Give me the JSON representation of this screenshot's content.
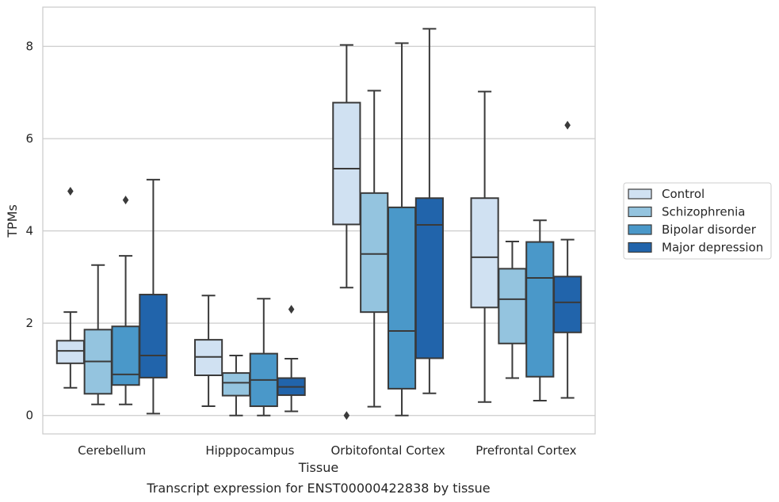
{
  "chart_data": {
    "type": "box",
    "title": "",
    "caption": "Transcript expression for ENST00000422838 by tissue",
    "xlabel": "Tissue",
    "ylabel": "TPMs",
    "ylim": [
      -0.4,
      8.85
    ],
    "yticks": [
      0,
      2,
      4,
      6,
      8
    ],
    "grid": "horizontal",
    "legend_position": "right",
    "categories": [
      "Cerebellum",
      "Hipppocampus",
      "Orbitofontal Cortex",
      "Prefrontal Cortex"
    ],
    "series": [
      {
        "name": "Control",
        "color": "#d0e1f2",
        "boxes": [
          {
            "whislo": 0.6,
            "q1": 1.13,
            "med": 1.4,
            "q3": 1.62,
            "whishi": 2.24,
            "fliers": [
              4.86
            ]
          },
          {
            "whislo": 0.2,
            "q1": 0.87,
            "med": 1.27,
            "q3": 1.64,
            "whishi": 2.6,
            "fliers": []
          },
          {
            "whislo": 2.77,
            "q1": 4.14,
            "med": 5.35,
            "q3": 6.78,
            "whishi": 8.03,
            "fliers": [
              0.0
            ]
          },
          {
            "whislo": 0.29,
            "q1": 2.34,
            "med": 3.43,
            "q3": 4.71,
            "whishi": 7.02,
            "fliers": []
          }
        ]
      },
      {
        "name": "Schizophrenia",
        "color": "#94c4df",
        "boxes": [
          {
            "whislo": 0.24,
            "q1": 0.47,
            "med": 1.17,
            "q3": 1.86,
            "whishi": 3.26,
            "fliers": []
          },
          {
            "whislo": 0.0,
            "q1": 0.43,
            "med": 0.71,
            "q3": 0.92,
            "whishi": 1.3,
            "fliers": []
          },
          {
            "whislo": 0.19,
            "q1": 2.24,
            "med": 3.5,
            "q3": 4.82,
            "whishi": 7.04,
            "fliers": []
          },
          {
            "whislo": 0.81,
            "q1": 1.56,
            "med": 2.52,
            "q3": 3.18,
            "whishi": 3.77,
            "fliers": []
          }
        ]
      },
      {
        "name": "Bipolar disorder",
        "color": "#4a98c9",
        "boxes": [
          {
            "whislo": 0.24,
            "q1": 0.66,
            "med": 0.89,
            "q3": 1.93,
            "whishi": 3.46,
            "fliers": [
              4.67
            ]
          },
          {
            "whislo": 0.0,
            "q1": 0.2,
            "med": 0.77,
            "q3": 1.34,
            "whishi": 2.53,
            "fliers": []
          },
          {
            "whislo": 0.0,
            "q1": 0.58,
            "med": 1.83,
            "q3": 4.51,
            "whishi": 8.07,
            "fliers": []
          },
          {
            "whislo": 0.32,
            "q1": 0.84,
            "med": 2.98,
            "q3": 3.76,
            "whishi": 4.23,
            "fliers": []
          }
        ]
      },
      {
        "name": "Major depression",
        "color": "#2164ab",
        "boxes": [
          {
            "whislo": 0.04,
            "q1": 0.82,
            "med": 1.3,
            "q3": 2.62,
            "whishi": 5.11,
            "fliers": []
          },
          {
            "whislo": 0.09,
            "q1": 0.44,
            "med": 0.62,
            "q3": 0.81,
            "whishi": 1.23,
            "fliers": [
              2.3
            ]
          },
          {
            "whislo": 0.48,
            "q1": 1.24,
            "med": 4.13,
            "q3": 4.71,
            "whishi": 8.38,
            "fliers": []
          },
          {
            "whislo": 0.38,
            "q1": 1.8,
            "med": 2.45,
            "q3": 3.01,
            "whishi": 3.81,
            "fliers": [
              6.29
            ]
          }
        ]
      }
    ]
  }
}
